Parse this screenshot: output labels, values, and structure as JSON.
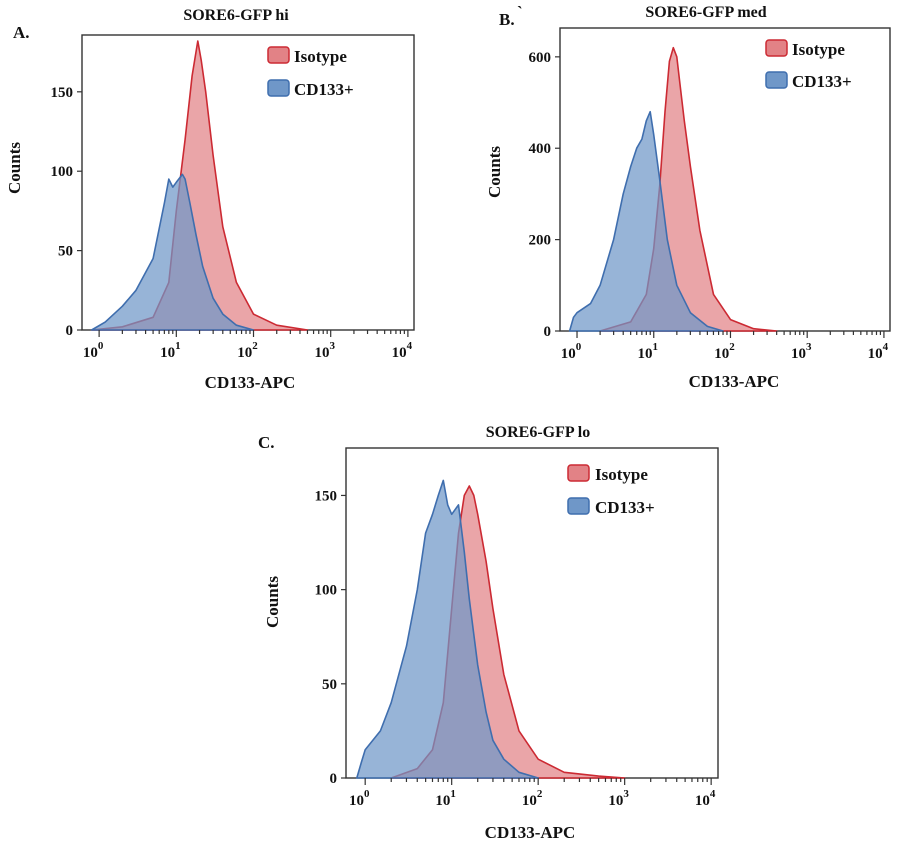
{
  "panels": {
    "a": {
      "letter": "A."
    },
    "b": {
      "letter": "B.",
      "mark": "`"
    },
    "c": {
      "letter": "C."
    }
  },
  "colors": {
    "isotype_fill": "#e28286",
    "isotype_stroke": "#cc2a33",
    "cd133_fill": "#6f97c8",
    "cd133_stroke": "#3f6eae"
  },
  "chart_data": [
    {
      "id": "a",
      "type": "area",
      "title": "SORE6-GFP hi",
      "xlabel": "CD133-APC",
      "ylabel": "Counts",
      "xscale": "log",
      "xlim": [
        0.6,
        12000
      ],
      "ylim": [
        0,
        182
      ],
      "xticks": [
        {
          "base": "10",
          "exp": "0"
        },
        {
          "base": "10",
          "exp": "1"
        },
        {
          "base": "10",
          "exp": "2"
        },
        {
          "base": "10",
          "exp": "3"
        },
        {
          "base": "10",
          "exp": "4"
        }
      ],
      "yticks": [
        "0",
        "50",
        "100",
        "150"
      ],
      "ytick_values": [
        0,
        50,
        100,
        150
      ],
      "legend": [
        "Isotype",
        "CD133+"
      ],
      "series": [
        {
          "name": "Isotype",
          "x": [
            0.8,
            2,
            5,
            8,
            10,
            13,
            16,
            19,
            21,
            24,
            30,
            40,
            60,
            100,
            200,
            500
          ],
          "y": [
            0,
            2,
            8,
            30,
            75,
            120,
            160,
            182,
            170,
            150,
            110,
            65,
            30,
            10,
            3,
            0
          ]
        },
        {
          "name": "CD133+",
          "x": [
            0.8,
            1.2,
            2,
            3,
            5,
            7,
            8,
            9,
            10,
            12,
            13,
            15,
            18,
            22,
            30,
            40,
            60,
            100
          ],
          "y": [
            0,
            5,
            15,
            25,
            45,
            80,
            95,
            90,
            93,
            98,
            95,
            80,
            60,
            40,
            20,
            10,
            3,
            0
          ]
        }
      ]
    },
    {
      "id": "b",
      "type": "area",
      "title": "SORE6-GFP med",
      "xlabel": "CD133-APC",
      "ylabel": "Counts",
      "xscale": "log",
      "xlim": [
        0.6,
        12000
      ],
      "ylim": [
        0,
        650
      ],
      "xticks": [
        {
          "base": "10",
          "exp": "0"
        },
        {
          "base": "10",
          "exp": "1"
        },
        {
          "base": "10",
          "exp": "2"
        },
        {
          "base": "10",
          "exp": "3"
        },
        {
          "base": "10",
          "exp": "4"
        }
      ],
      "yticks": [
        "0",
        "200",
        "400",
        "600"
      ],
      "ytick_values": [
        0,
        200,
        400,
        600
      ],
      "legend": [
        "Isotype",
        "CD133+"
      ],
      "series": [
        {
          "name": "Isotype",
          "x": [
            2,
            5,
            8,
            10,
            12,
            14,
            16,
            18,
            20,
            22,
            25,
            30,
            40,
            60,
            100,
            200,
            400
          ],
          "y": [
            0,
            20,
            80,
            180,
            320,
            480,
            590,
            620,
            600,
            540,
            460,
            360,
            220,
            80,
            25,
            5,
            0
          ]
        },
        {
          "name": "CD133+",
          "x": [
            0.8,
            0.9,
            1,
            1.5,
            2,
            3,
            4,
            5,
            6,
            7,
            8,
            9,
            10,
            12,
            15,
            20,
            30,
            50,
            80
          ],
          "y": [
            0,
            30,
            40,
            60,
            100,
            200,
            300,
            360,
            400,
            420,
            460,
            480,
            430,
            330,
            200,
            100,
            40,
            10,
            0
          ]
        }
      ]
    },
    {
      "id": "c",
      "type": "area",
      "title": "SORE6-GFP lo",
      "xlabel": "CD133-APC",
      "ylabel": "Counts",
      "xscale": "log",
      "xlim": [
        0.6,
        12000
      ],
      "ylim": [
        0,
        172
      ],
      "xticks": [
        {
          "base": "10",
          "exp": "0"
        },
        {
          "base": "10",
          "exp": "1"
        },
        {
          "base": "10",
          "exp": "2"
        },
        {
          "base": "10",
          "exp": "3"
        },
        {
          "base": "10",
          "exp": "4"
        }
      ],
      "yticks": [
        "0",
        "50",
        "100",
        "150"
      ],
      "ytick_values": [
        0,
        50,
        100,
        150
      ],
      "legend": [
        "Isotype",
        "CD133+"
      ],
      "series": [
        {
          "name": "Isotype",
          "x": [
            2,
            4,
            6,
            8,
            10,
            12,
            14,
            16,
            18,
            20,
            25,
            30,
            40,
            60,
            100,
            200,
            500,
            1000
          ],
          "y": [
            0,
            5,
            15,
            40,
            90,
            130,
            150,
            155,
            150,
            140,
            115,
            90,
            55,
            25,
            10,
            3,
            1,
            0
          ]
        },
        {
          "name": "CD133+",
          "x": [
            0.8,
            0.9,
            1,
            1.5,
            2,
            3,
            4,
            5,
            6,
            7,
            8,
            9,
            10,
            12,
            14,
            16,
            20,
            25,
            30,
            40,
            60,
            100
          ],
          "y": [
            0,
            8,
            15,
            25,
            40,
            70,
            100,
            130,
            140,
            150,
            158,
            145,
            140,
            145,
            120,
            95,
            60,
            35,
            20,
            10,
            3,
            0
          ]
        }
      ]
    }
  ]
}
